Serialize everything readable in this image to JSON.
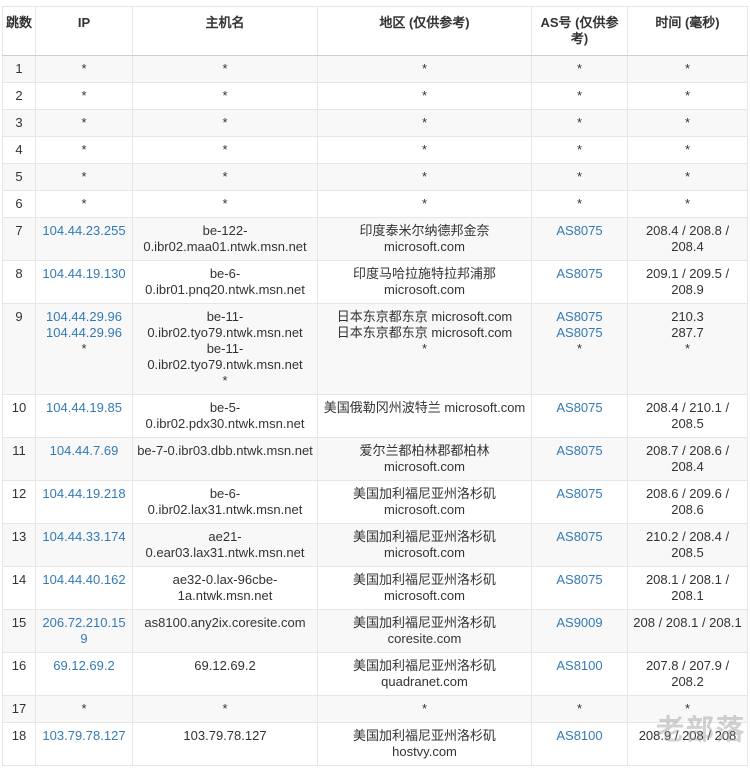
{
  "watermark": "老部落",
  "colors": {
    "link_blue": "#337ab7",
    "stripe_bg": "#f8f8f8",
    "border": "#e6e6e6",
    "text": "#333333"
  },
  "table": {
    "headers": [
      "跳数",
      "IP",
      "主机名",
      "地区 (仅供参考)",
      "AS号 (仅供参考)",
      "时间 (毫秒)"
    ],
    "rows": [
      {
        "hop": "1",
        "ip": [
          "*"
        ],
        "host": [
          "*"
        ],
        "region": [
          "*"
        ],
        "asn": [
          "*"
        ],
        "time": [
          "*"
        ]
      },
      {
        "hop": "2",
        "ip": [
          "*"
        ],
        "host": [
          "*"
        ],
        "region": [
          "*"
        ],
        "asn": [
          "*"
        ],
        "time": [
          "*"
        ]
      },
      {
        "hop": "3",
        "ip": [
          "*"
        ],
        "host": [
          "*"
        ],
        "region": [
          "*"
        ],
        "asn": [
          "*"
        ],
        "time": [
          "*"
        ]
      },
      {
        "hop": "4",
        "ip": [
          "*"
        ],
        "host": [
          "*"
        ],
        "region": [
          "*"
        ],
        "asn": [
          "*"
        ],
        "time": [
          "*"
        ]
      },
      {
        "hop": "5",
        "ip": [
          "*"
        ],
        "host": [
          "*"
        ],
        "region": [
          "*"
        ],
        "asn": [
          "*"
        ],
        "time": [
          "*"
        ]
      },
      {
        "hop": "6",
        "ip": [
          "*"
        ],
        "host": [
          "*"
        ],
        "region": [
          "*"
        ],
        "asn": [
          "*"
        ],
        "time": [
          "*"
        ]
      },
      {
        "hop": "7",
        "ip": [
          "104.44.23.255"
        ],
        "host": [
          "be-122-0.ibr02.maa01.ntwk.msn.net"
        ],
        "region": [
          "印度泰米尔纳德邦金奈 microsoft.com"
        ],
        "asn": [
          "AS8075"
        ],
        "time": [
          "208.4 / 208.8 / 208.4"
        ]
      },
      {
        "hop": "8",
        "ip": [
          "104.44.19.130"
        ],
        "host": [
          "be-6-0.ibr01.pnq20.ntwk.msn.net"
        ],
        "region": [
          "印度马哈拉施特拉邦浦那 microsoft.com"
        ],
        "asn": [
          "AS8075"
        ],
        "time": [
          "209.1 / 209.5 / 208.9"
        ]
      },
      {
        "hop": "9",
        "ip": [
          "104.44.29.96",
          "104.44.29.96",
          "*"
        ],
        "host": [
          "be-11-0.ibr02.tyo79.ntwk.msn.net",
          "be-11-0.ibr02.tyo79.ntwk.msn.net",
          "*"
        ],
        "region": [
          "日本东京都东京 microsoft.com",
          "日本东京都东京 microsoft.com",
          "*"
        ],
        "asn": [
          "AS8075",
          "AS8075",
          "*"
        ],
        "time": [
          "210.3",
          "287.7",
          "*"
        ]
      },
      {
        "hop": "10",
        "ip": [
          "104.44.19.85"
        ],
        "host": [
          "be-5-0.ibr02.pdx30.ntwk.msn.net"
        ],
        "region": [
          "美国俄勒冈州波特兰 microsoft.com"
        ],
        "asn": [
          "AS8075"
        ],
        "time": [
          "208.4 / 210.1 / 208.5"
        ]
      },
      {
        "hop": "11",
        "ip": [
          "104.44.7.69"
        ],
        "host": [
          "be-7-0.ibr03.dbb.ntwk.msn.net"
        ],
        "region": [
          "爱尔兰都柏林郡都柏林 microsoft.com"
        ],
        "asn": [
          "AS8075"
        ],
        "time": [
          "208.7 / 208.6 / 208.4"
        ]
      },
      {
        "hop": "12",
        "ip": [
          "104.44.19.218"
        ],
        "host": [
          "be-6-0.ibr02.lax31.ntwk.msn.net"
        ],
        "region": [
          "美国加利福尼亚州洛杉矶 microsoft.com"
        ],
        "asn": [
          "AS8075"
        ],
        "time": [
          "208.6 / 209.6 / 208.6"
        ]
      },
      {
        "hop": "13",
        "ip": [
          "104.44.33.174"
        ],
        "host": [
          "ae21-0.ear03.lax31.ntwk.msn.net"
        ],
        "region": [
          "美国加利福尼亚州洛杉矶 microsoft.com"
        ],
        "asn": [
          "AS8075"
        ],
        "time": [
          "210.2 / 208.4 / 208.5"
        ]
      },
      {
        "hop": "14",
        "ip": [
          "104.44.40.162"
        ],
        "host": [
          "ae32-0.lax-96cbe-1a.ntwk.msn.net"
        ],
        "region": [
          "美国加利福尼亚州洛杉矶 microsoft.com"
        ],
        "asn": [
          "AS8075"
        ],
        "time": [
          "208.1 / 208.1 / 208.1"
        ]
      },
      {
        "hop": "15",
        "ip": [
          "206.72.210.159"
        ],
        "host": [
          "as8100.any2ix.coresite.com"
        ],
        "region": [
          "美国加利福尼亚州洛杉矶 coresite.com"
        ],
        "asn": [
          "AS9009"
        ],
        "time": [
          "208 / 208.1 / 208.1"
        ]
      },
      {
        "hop": "16",
        "ip": [
          "69.12.69.2"
        ],
        "host": [
          "69.12.69.2"
        ],
        "region": [
          "美国加利福尼亚州洛杉矶 quadranet.com"
        ],
        "asn": [
          "AS8100"
        ],
        "time": [
          "207.8 / 207.9 / 208.2"
        ]
      },
      {
        "hop": "17",
        "ip": [
          "*"
        ],
        "host": [
          "*"
        ],
        "region": [
          "*"
        ],
        "asn": [
          "*"
        ],
        "time": [
          "*"
        ]
      },
      {
        "hop": "18",
        "ip": [
          "103.79.78.127"
        ],
        "host": [
          "103.79.78.127"
        ],
        "region": [
          "美国加利福尼亚州洛杉矶 hostvy.com"
        ],
        "asn": [
          "AS8100"
        ],
        "time": [
          "208.9 / 208 / 208"
        ]
      }
    ]
  }
}
